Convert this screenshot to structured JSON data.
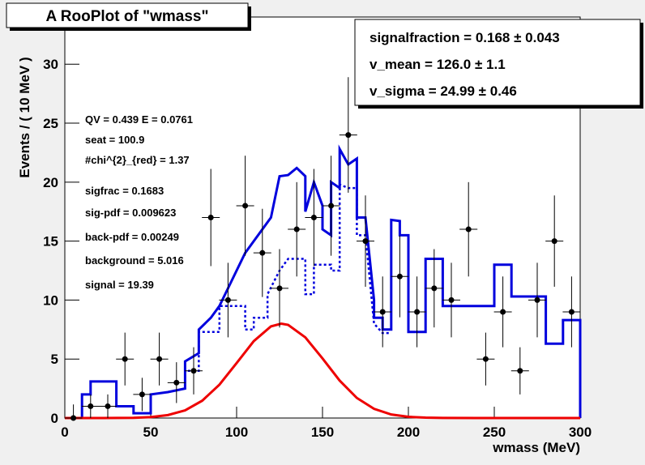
{
  "chart_data": {
    "type": "line",
    "title": "A RooPlot of \"wmass\"",
    "xlabel": "wmass (MeV)",
    "ylabel": "Events / ( 10 MeV )",
    "xlim": [
      0,
      300
    ],
    "ylim": [
      0,
      34
    ],
    "xticks": [
      0,
      50,
      100,
      150,
      200,
      250,
      300
    ],
    "yticks": [
      0,
      5,
      10,
      15,
      20,
      25,
      30
    ],
    "series": [
      {
        "kind": "points",
        "color": "#000000",
        "x": [
          5,
          15,
          25,
          35,
          45,
          55,
          65,
          75,
          85,
          95,
          105,
          115,
          125,
          135,
          145,
          155,
          165,
          175,
          185,
          195,
          205,
          215,
          225,
          235,
          245,
          255,
          265,
          275,
          285,
          295
        ],
        "values": [
          0,
          1,
          1,
          5,
          2,
          5,
          3,
          4,
          17,
          10,
          18,
          14,
          11,
          16,
          17,
          18,
          24,
          15,
          9,
          12,
          9,
          11,
          10,
          16,
          5,
          9,
          4,
          10,
          15,
          9
        ],
        "errors": [
          1.15,
          1,
          1,
          2.24,
          1.41,
          2.24,
          1.73,
          2,
          4.12,
          3.16,
          4.24,
          3.74,
          3.32,
          4,
          4.12,
          4.24,
          4.9,
          3.87,
          3,
          3.46,
          3,
          3.32,
          3.16,
          4,
          2.24,
          3,
          2,
          3.16,
          3.87,
          3
        ]
      },
      {
        "kind": "line",
        "style": "solid",
        "color": "#0000dd",
        "x": [
          10,
          10,
          15,
          15,
          30,
          30,
          40,
          40,
          50,
          50,
          60,
          70,
          70,
          78,
          78,
          85,
          90,
          95,
          100,
          105,
          110,
          115,
          120,
          125,
          130,
          135,
          140,
          140,
          145,
          150,
          150,
          155,
          155,
          160,
          160,
          165,
          170,
          170,
          175,
          180,
          180,
          185,
          185,
          190,
          190,
          195,
          195,
          200,
          200,
          210,
          210,
          220,
          220,
          250,
          250,
          260,
          260,
          280,
          280,
          290,
          290,
          300,
          300
        ],
        "values": [
          0,
          2,
          2,
          3.1,
          3.1,
          1,
          1,
          0.4,
          0.4,
          2,
          2.2,
          2.5,
          4.8,
          5.5,
          7.5,
          8.5,
          9.5,
          11,
          12.5,
          14,
          15,
          16,
          17,
          20.5,
          20.6,
          21.2,
          20.5,
          17.5,
          20,
          18,
          16,
          15.5,
          20,
          19.5,
          22.8,
          21.5,
          22,
          17,
          17,
          10,
          8.5,
          8.5,
          7.5,
          7.5,
          16.8,
          16.7,
          15.5,
          15.5,
          7.3,
          7.3,
          13.5,
          13.5,
          9.5,
          9.5,
          13,
          13,
          10.3,
          10.3,
          6.3,
          6.3,
          8.3,
          8.3,
          0
        ]
      },
      {
        "kind": "line",
        "style": "dotted",
        "color": "#0000dd",
        "x": [
          70,
          70,
          78,
          78,
          90,
          90,
          105,
          105,
          110,
          110,
          118,
          118,
          125,
          130,
          140,
          140,
          145,
          145,
          155,
          155,
          160,
          160,
          165,
          170,
          170,
          175,
          180,
          185,
          190
        ],
        "values": [
          3,
          4,
          4,
          7.3,
          7.3,
          9.5,
          9.5,
          7.5,
          7.5,
          8.5,
          8.5,
          10.5,
          12.5,
          13.5,
          13.5,
          10.5,
          10.5,
          13,
          13,
          12.5,
          12.5,
          19.8,
          19.5,
          19.5,
          15.5,
          15.5,
          8,
          7.2,
          7.2
        ]
      },
      {
        "kind": "line",
        "style": "solid",
        "color": "#ee0000",
        "x": [
          0,
          20,
          40,
          50,
          60,
          70,
          80,
          90,
          100,
          110,
          120,
          126,
          130,
          140,
          150,
          160,
          170,
          180,
          190,
          200,
          210,
          220,
          240,
          300
        ],
        "values": [
          0,
          0,
          0.02,
          0.08,
          0.25,
          0.65,
          1.47,
          2.83,
          4.66,
          6.52,
          7.77,
          8,
          7.9,
          6.84,
          5.05,
          3.17,
          1.7,
          0.78,
          0.3,
          0.1,
          0.03,
          0.01,
          0,
          0
        ]
      }
    ],
    "stats": [
      "signalfraction =  0.168 ± 0.043",
      "v_mean =  126.0 ± 1.1",
      "v_sigma =  24.99 ± 0.46"
    ],
    "annotations": [
      "QV = 0.439 E = 0.0761",
      "seat = 100.9",
      "#chi^{2}_{red} = 1.37",
      "sigfrac = 0.1683",
      "sig-pdf = 0.009623",
      "back-pdf = 0.00249",
      "background = 5.016",
      "signal = 19.39"
    ]
  }
}
